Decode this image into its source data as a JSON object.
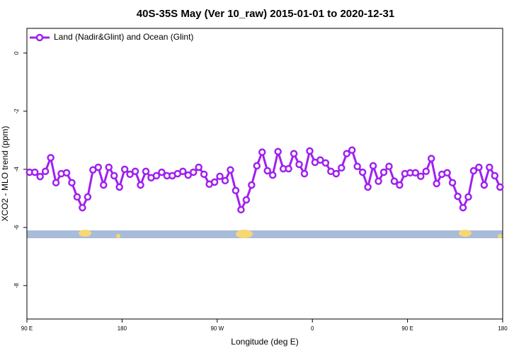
{
  "chart_data": {
    "type": "line",
    "title": "40S-35S May (Ver 10_raw)   2015-01-01 to 2020-12-31",
    "x_label": "Longitude (deg E)",
    "y_label": "XCO2 - MLO trend (ppm)",
    "x": [
      92.5,
      97.5,
      102.5,
      107.5,
      112.5,
      117.5,
      122.5,
      127.5,
      132.5,
      137.5,
      142.5,
      147.5,
      152.5,
      157.5,
      162.5,
      167.5,
      172.5,
      177.5,
      182.5,
      187.5,
      192.5,
      197.5,
      202.5,
      207.5,
      212.5,
      217.5,
      222.5,
      227.5,
      232.5,
      237.5,
      242.5,
      247.5,
      252.5,
      257.5,
      262.5,
      267.5,
      272.5,
      277.5,
      282.5,
      287.5,
      292.5,
      297.5,
      302.5,
      307.5,
      312.5,
      317.5,
      322.5,
      327.5,
      332.5,
      337.5,
      342.5,
      347.5,
      352.5,
      357.5,
      362.5,
      367.5,
      372.5,
      377.5,
      382.5,
      387.5,
      392.5,
      397.5,
      402.5,
      407.5,
      412.5,
      417.5,
      422.5,
      427.5,
      432.5,
      437.5,
      442.5,
      447.5,
      452.5,
      457.5,
      462.5,
      467.5,
      472.5,
      477.5,
      482.5,
      487.5,
      492.5,
      497.5,
      502.5,
      507.5,
      512.5,
      517.5,
      522.5,
      527.5,
      532.5,
      537.5
    ],
    "series": [
      {
        "name": "Land (Nadir&Glint) and Ocean (Glint)",
        "color": "#a020f0",
        "values": [
          -4.1,
          -4.1,
          -4.25,
          -4.07,
          -3.6,
          -4.46,
          -4.15,
          -4.12,
          -4.46,
          -4.95,
          -5.32,
          -4.95,
          -4.02,
          -3.93,
          -4.54,
          -3.93,
          -4.22,
          -4.61,
          -4.0,
          -4.17,
          -4.07,
          -4.54,
          -4.07,
          -4.29,
          -4.22,
          -4.1,
          -4.22,
          -4.22,
          -4.15,
          -4.07,
          -4.2,
          -4.1,
          -3.93,
          -4.17,
          -4.51,
          -4.44,
          -4.24,
          -4.39,
          -4.02,
          -4.73,
          -5.39,
          -5.05,
          -4.54,
          -3.88,
          -3.41,
          -4.05,
          -4.2,
          -3.39,
          -3.98,
          -3.98,
          -3.46,
          -3.83,
          -4.15,
          -3.37,
          -3.76,
          -3.68,
          -3.78,
          -4.07,
          -4.15,
          -3.95,
          -3.46,
          -3.34,
          -3.9,
          -4.1,
          -4.61,
          -3.88,
          -4.41,
          -4.1,
          -3.9,
          -4.41,
          -4.54,
          -4.15,
          -4.12,
          -4.12,
          -4.24,
          -4.07,
          -3.63,
          -4.49,
          -4.17,
          -4.12,
          -4.46,
          -4.93,
          -5.32,
          -4.95,
          -4.05,
          -3.93,
          -4.54,
          -3.93,
          -4.22,
          -4.61
        ]
      }
    ],
    "xlim": [
      90,
      540
    ],
    "xticks": [
      {
        "value": 90,
        "label": "90 E"
      },
      180,
      {
        "value": 270,
        "label": "90 W"
      },
      {
        "value": 360,
        "label": "0"
      },
      {
        "value": 450,
        "label": "90 E"
      },
      {
        "value": 540,
        "label": "180"
      }
    ],
    "ylim": [
      -9.15,
      0.85
    ],
    "yticks": [
      0,
      -2,
      -4,
      -6,
      -8
    ],
    "legend": "top-left"
  }
}
